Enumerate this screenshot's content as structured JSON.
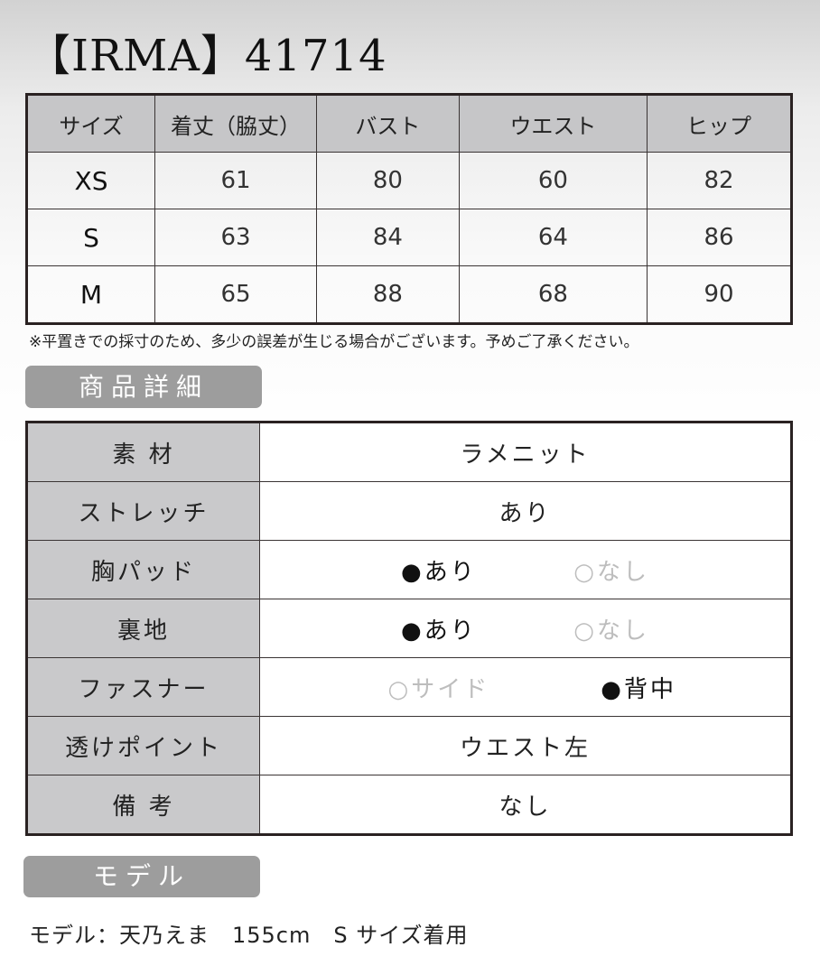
{
  "title": "【IRMA】41714",
  "size_table": {
    "headers": [
      "サイズ",
      "着丈（脇丈）",
      "バスト",
      "ウエスト",
      "ヒップ"
    ],
    "rows": [
      [
        "XS",
        "61",
        "80",
        "60",
        "82"
      ],
      [
        "S",
        "63",
        "84",
        "64",
        "86"
      ],
      [
        "M",
        "65",
        "88",
        "68",
        "90"
      ]
    ]
  },
  "note": "※平置きでの採寸のため、多少の誤差が生じる場合がございます。予めご了承ください。",
  "details_label": "商品詳細",
  "details": {
    "material": {
      "key": "素 材",
      "value": "ラメニット"
    },
    "stretch": {
      "key": "ストレッチ",
      "value": "あり"
    },
    "pad": {
      "key": "胸パッド",
      "on": "●あり",
      "off": "○なし"
    },
    "lining": {
      "key": "裏地",
      "on": "●あり",
      "off": "○なし"
    },
    "fastener": {
      "key": "ファスナー",
      "off": "○サイド",
      "on": "●背中"
    },
    "sheer": {
      "key": "透けポイント",
      "value": "ウエスト左"
    },
    "remarks": {
      "key": "備 考",
      "value": "なし"
    }
  },
  "model_label": "モデル",
  "model_text": "モデル：天乃えま　155cm　S サイズ着用"
}
